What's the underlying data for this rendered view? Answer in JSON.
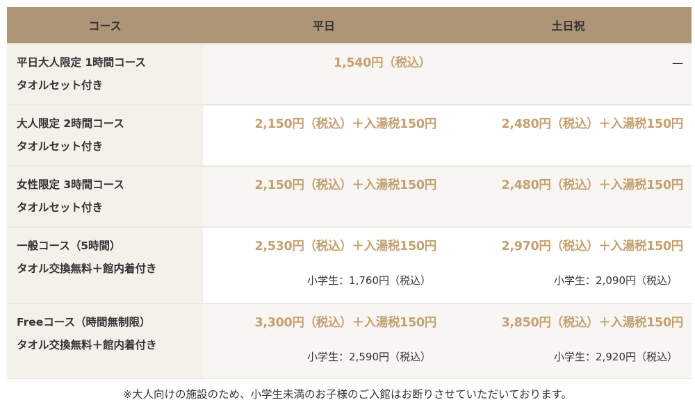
{
  "header": {
    "course": "コース",
    "weekday": "平日",
    "weekend": "土日祝"
  },
  "rows": [
    {
      "name": "平日大人限定 1時間コース",
      "sub": "タオルセット付き",
      "weekday": "1,540円（税込）",
      "weekend": "—"
    },
    {
      "name": "大人限定 2時間コース",
      "sub": "タオルセット付き",
      "weekday": "2,150円（税込）＋入湯税150円",
      "weekend": "2,480円（税込）＋入湯税150円"
    },
    {
      "name": "女性限定 3時間コース",
      "sub": "タオルセット付き",
      "weekday": "2,150円（税込）＋入湯税150円",
      "weekend": "2,480円（税込）＋入湯税150円"
    },
    {
      "name": "一般コース（5時間）",
      "sub": "タオル交換無料＋館内着付き",
      "weekday": "2,530円（税込）＋入湯税150円",
      "weekend": "2,970円（税込）＋入湯税150円",
      "weekday_child": "小学生：1,760円（税込）",
      "weekend_child": "小学生：2,090円（税込）"
    },
    {
      "name": "Freeコース（時間無制限）",
      "sub": "タオル交換無料＋館内着付き",
      "weekday": "3,300円（税込）＋入湯税150円",
      "weekend": "3,850円（税込）＋入湯税150円",
      "weekday_child": "小学生：2,590円（税込）",
      "weekend_child": "小学生：2,920円（税込）"
    }
  ],
  "note": "※大人向けの施設のため、小学生未満のお子様のご入館はお断りさせていただいております。",
  "colors": {
    "header_bg": "#ae9577",
    "price": "#c4a172"
  }
}
